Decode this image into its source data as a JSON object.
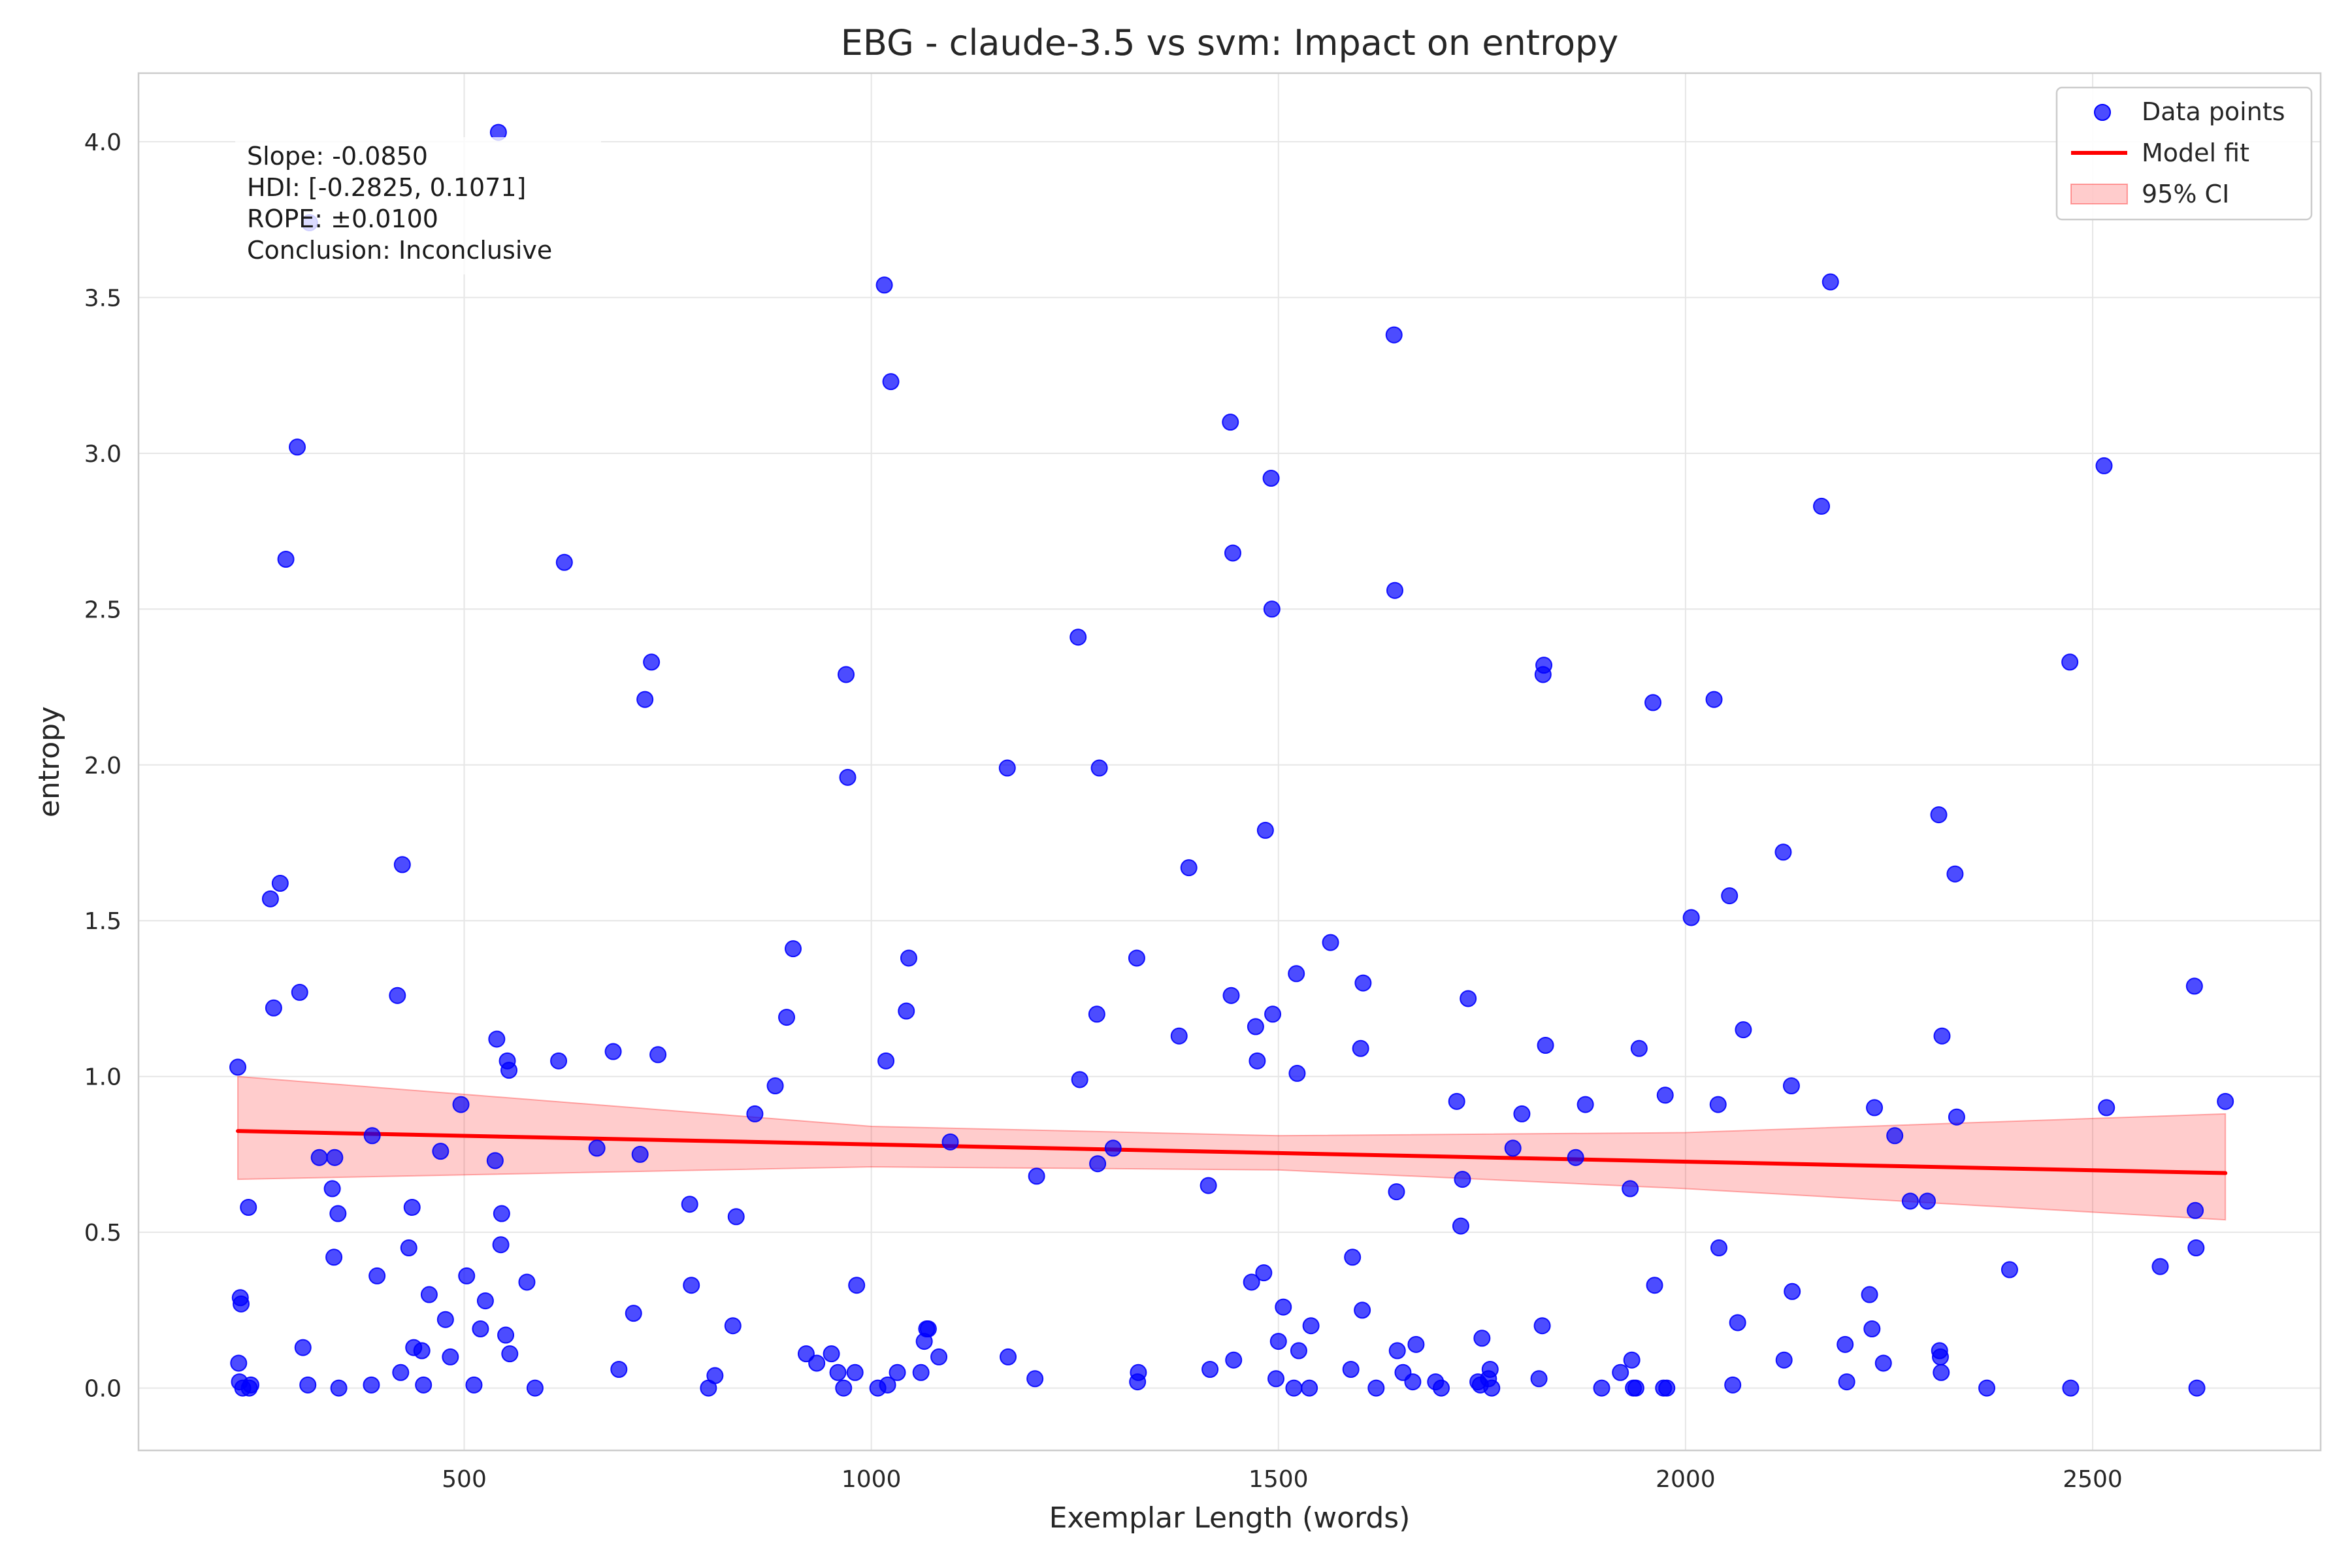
{
  "chart_data": {
    "type": "scatter",
    "title": "EBG - claude-3.5 vs svm: Impact on entropy",
    "xlabel": "Exemplar Length (words)",
    "ylabel": "entropy",
    "xlim": [
      100,
      2780
    ],
    "ylim": [
      -0.2,
      4.22
    ],
    "xticks": [
      "500",
      "1000",
      "1500",
      "2000",
      "2500"
    ],
    "xtick_values": [
      500,
      1000,
      1500,
      2000,
      2500
    ],
    "yticks": [
      "0.0",
      "0.5",
      "1.0",
      "1.5",
      "2.0",
      "2.5",
      "3.0",
      "3.5",
      "4.0"
    ],
    "ytick_values": [
      0,
      0.5,
      1,
      1.5,
      2,
      2.5,
      3,
      3.5,
      4
    ],
    "grid": true,
    "legend_position": "top-right",
    "legend": [
      {
        "label": "Data points",
        "kind": "marker",
        "color": "#0000ff"
      },
      {
        "label": "Model fit",
        "kind": "line",
        "color": "#ff0000"
      },
      {
        "label": "95% CI",
        "kind": "band",
        "color": "#ff0000"
      }
    ],
    "stats_box": [
      "Slope: -0.0850",
      "HDI: [-0.2825, 0.1071]",
      "ROPE: ±0.0100",
      "Conclusion: Inconclusive"
    ],
    "fit_line": {
      "x": [
        222,
        2663
      ],
      "y": [
        0.825,
        0.69
      ],
      "color": "#ff0000"
    },
    "ci_band": {
      "x": [
        222,
        1000,
        1500,
        2000,
        2663
      ],
      "upper": [
        1.0,
        0.84,
        0.81,
        0.82,
        0.88
      ],
      "lower": [
        0.67,
        0.71,
        0.7,
        0.64,
        0.54
      ],
      "color": "#ff0000"
    },
    "series": [
      {
        "color": "#0000ff",
        "points": [
          [
            222,
            1.03
          ],
          [
            225,
            0.29
          ],
          [
            226,
            0.27
          ],
          [
            223,
            0.08
          ],
          [
            224,
            0.02
          ],
          [
            228,
            0.0
          ],
          [
            235,
            0.58
          ],
          [
            236,
            0.0
          ],
          [
            238,
            0.01
          ],
          [
            262,
            1.57
          ],
          [
            266,
            1.22
          ],
          [
            274,
            1.62
          ],
          [
            281,
            2.66
          ],
          [
            295,
            3.02
          ],
          [
            298,
            1.27
          ],
          [
            302,
            0.13
          ],
          [
            310,
            3.74
          ],
          [
            308,
            0.01
          ],
          [
            322,
            0.74
          ],
          [
            338,
            0.64
          ],
          [
            341,
            0.74
          ],
          [
            340,
            0.42
          ],
          [
            345,
            0.56
          ],
          [
            346,
            0.0
          ],
          [
            386,
            0.01
          ],
          [
            387,
            0.81
          ],
          [
            393,
            0.36
          ],
          [
            418,
            1.26
          ],
          [
            424,
            1.68
          ],
          [
            422,
            0.05
          ],
          [
            432,
            0.45
          ],
          [
            436,
            0.58
          ],
          [
            438,
            0.13
          ],
          [
            448,
            0.12
          ],
          [
            450,
            0.01
          ],
          [
            457,
            0.3
          ],
          [
            471,
            0.76
          ],
          [
            477,
            0.22
          ],
          [
            483,
            0.1
          ],
          [
            496,
            0.91
          ],
          [
            503,
            0.36
          ],
          [
            512,
            0.01
          ],
          [
            520,
            0.19
          ],
          [
            526,
            0.28
          ],
          [
            538,
            0.73
          ],
          [
            540,
            1.12
          ],
          [
            542,
            4.03
          ],
          [
            545,
            0.46
          ],
          [
            546,
            0.56
          ],
          [
            551,
            0.17
          ],
          [
            553,
            1.05
          ],
          [
            555,
            1.02
          ],
          [
            556,
            0.11
          ],
          [
            577,
            0.34
          ],
          [
            587,
            0.0
          ],
          [
            616,
            1.05
          ],
          [
            623,
            2.65
          ],
          [
            663,
            0.77
          ],
          [
            683,
            1.08
          ],
          [
            690,
            0.06
          ],
          [
            708,
            0.24
          ],
          [
            716,
            0.75
          ],
          [
            722,
            2.21
          ],
          [
            730,
            2.33
          ],
          [
            738,
            1.07
          ],
          [
            777,
            0.59
          ],
          [
            779,
            0.33
          ],
          [
            800,
            0.0
          ],
          [
            808,
            0.04
          ],
          [
            830,
            0.2
          ],
          [
            834,
            0.55
          ],
          [
            857,
            0.88
          ],
          [
            882,
            0.97
          ],
          [
            896,
            1.19
          ],
          [
            904,
            1.41
          ],
          [
            920,
            0.11
          ],
          [
            933,
            0.08
          ],
          [
            951,
            0.11
          ],
          [
            959,
            0.05
          ],
          [
            966,
            0.0
          ],
          [
            969,
            2.29
          ],
          [
            971,
            1.96
          ],
          [
            980,
            0.05
          ],
          [
            982,
            0.33
          ],
          [
            1008,
            0.0
          ],
          [
            1016,
            3.54
          ],
          [
            1018,
            1.05
          ],
          [
            1020,
            0.01
          ],
          [
            1024,
            3.23
          ],
          [
            1032,
            0.05
          ],
          [
            1043,
            1.21
          ],
          [
            1046,
            1.38
          ],
          [
            1061,
            0.05
          ],
          [
            1065,
            0.15
          ],
          [
            1068,
            0.19
          ],
          [
            1070,
            0.19
          ],
          [
            1083,
            0.1
          ],
          [
            1097,
            0.79
          ],
          [
            1167,
            1.99
          ],
          [
            1168,
            0.1
          ],
          [
            1201,
            0.03
          ],
          [
            1203,
            0.68
          ],
          [
            1254,
            2.41
          ],
          [
            1256,
            0.99
          ],
          [
            1277,
            1.2
          ],
          [
            1278,
            0.72
          ],
          [
            1280,
            1.99
          ],
          [
            1297,
            0.77
          ],
          [
            1326,
            1.38
          ],
          [
            1327,
            0.02
          ],
          [
            1328,
            0.05
          ],
          [
            1378,
            1.13
          ],
          [
            1390,
            1.67
          ],
          [
            1414,
            0.65
          ],
          [
            1416,
            0.06
          ],
          [
            1441,
            3.1
          ],
          [
            1442,
            1.26
          ],
          [
            1444,
            2.68
          ],
          [
            1445,
            0.09
          ],
          [
            1467,
            0.34
          ],
          [
            1472,
            1.16
          ],
          [
            1474,
            1.05
          ],
          [
            1482,
            0.37
          ],
          [
            1484,
            1.79
          ],
          [
            1491,
            2.92
          ],
          [
            1492,
            2.5
          ],
          [
            1493,
            1.2
          ],
          [
            1497,
            0.03
          ],
          [
            1500,
            0.15
          ],
          [
            1506,
            0.26
          ],
          [
            1519,
            0.0
          ],
          [
            1522,
            1.33
          ],
          [
            1523,
            1.01
          ],
          [
            1525,
            0.12
          ],
          [
            1538,
            0.0
          ],
          [
            1540,
            0.2
          ],
          [
            1564,
            1.43
          ],
          [
            1589,
            0.06
          ],
          [
            1591,
            0.42
          ],
          [
            1601,
            1.09
          ],
          [
            1603,
            0.25
          ],
          [
            1604,
            1.3
          ],
          [
            1620,
            0.0
          ],
          [
            1642,
            3.38
          ],
          [
            1643,
            2.56
          ],
          [
            1645,
            0.63
          ],
          [
            1646,
            0.12
          ],
          [
            1653,
            0.05
          ],
          [
            1665,
            0.02
          ],
          [
            1669,
            0.14
          ],
          [
            1693,
            0.02
          ],
          [
            1700,
            0.0
          ],
          [
            1719,
            0.92
          ],
          [
            1724,
            0.52
          ],
          [
            1726,
            0.67
          ],
          [
            1733,
            1.25
          ],
          [
            1745,
            0.02
          ],
          [
            1748,
            0.01
          ],
          [
            1750,
            0.16
          ],
          [
            1758,
            0.03
          ],
          [
            1760,
            0.06
          ],
          [
            1762,
            0.0
          ],
          [
            1788,
            0.77
          ],
          [
            1799,
            0.88
          ],
          [
            1820,
            0.03
          ],
          [
            1824,
            0.2
          ],
          [
            1825,
            2.29
          ],
          [
            1826,
            2.32
          ],
          [
            1828,
            1.1
          ],
          [
            1865,
            0.74
          ],
          [
            1877,
            0.91
          ],
          [
            1897,
            0.0
          ],
          [
            1920,
            0.05
          ],
          [
            1932,
            0.64
          ],
          [
            1934,
            0.09
          ],
          [
            1936,
            0.0
          ],
          [
            1939,
            0.0
          ],
          [
            1943,
            1.09
          ],
          [
            1960,
            2.2
          ],
          [
            1962,
            0.33
          ],
          [
            1973,
            0.0
          ],
          [
            1975,
            0.94
          ],
          [
            1977,
            0.0
          ],
          [
            2007,
            1.51
          ],
          [
            2035,
            2.21
          ],
          [
            2040,
            0.91
          ],
          [
            2041,
            0.45
          ],
          [
            2054,
            1.58
          ],
          [
            2058,
            0.01
          ],
          [
            2064,
            0.21
          ],
          [
            2071,
            1.15
          ],
          [
            2120,
            1.72
          ],
          [
            2121,
            0.09
          ],
          [
            2130,
            0.97
          ],
          [
            2131,
            0.31
          ],
          [
            2167,
            2.83
          ],
          [
            2178,
            3.55
          ],
          [
            2196,
            0.14
          ],
          [
            2198,
            0.02
          ],
          [
            2226,
            0.3
          ],
          [
            2229,
            0.19
          ],
          [
            2232,
            0.9
          ],
          [
            2243,
            0.08
          ],
          [
            2257,
            0.81
          ],
          [
            2276,
            0.6
          ],
          [
            2297,
            0.6
          ],
          [
            2311,
            1.84
          ],
          [
            2312,
            0.12
          ],
          [
            2313,
            0.1
          ],
          [
            2314,
            0.05
          ],
          [
            2315,
            1.13
          ],
          [
            2331,
            1.65
          ],
          [
            2333,
            0.87
          ],
          [
            2370,
            0.0
          ],
          [
            2398,
            0.38
          ],
          [
            2472,
            2.33
          ],
          [
            2473,
            0.0
          ],
          [
            2514,
            2.96
          ],
          [
            2517,
            0.9
          ],
          [
            2583,
            0.39
          ],
          [
            2625,
            1.29
          ],
          [
            2626,
            0.57
          ],
          [
            2627,
            0.45
          ],
          [
            2628,
            0.0
          ],
          [
            2663,
            0.92
          ]
        ]
      }
    ]
  }
}
